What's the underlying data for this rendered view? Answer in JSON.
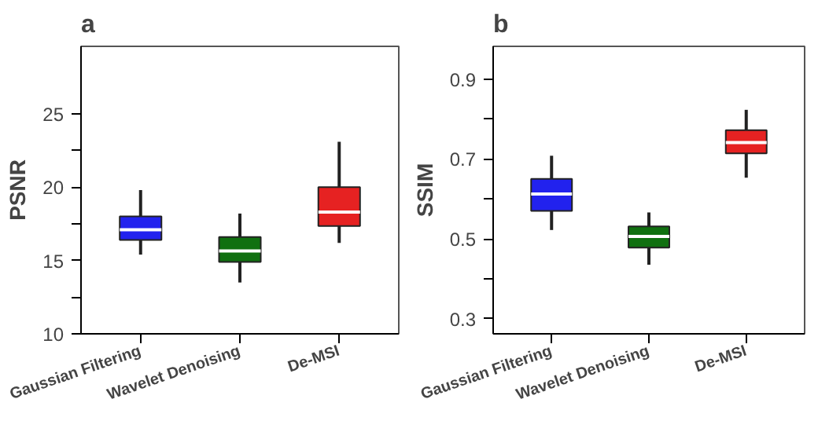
{
  "chart_data": [
    {
      "type": "box",
      "title": "a",
      "ylabel": "PSNR",
      "categories": [
        "Gaussian Filtering",
        "Wavelet Denoising",
        "De-MSI"
      ],
      "colors": [
        "#2222ee",
        "#107010",
        "#e62222"
      ],
      "ylim": [
        10,
        29.6
      ],
      "yticks": [
        10,
        {
          "value": 12.5,
          "label": null
        },
        15,
        {
          "value": 17.5,
          "label": null
        },
        20,
        {
          "value": 22.5,
          "label": null
        },
        25
      ],
      "grid": false,
      "boxes": [
        {
          "low": 15.4,
          "q1": 16.4,
          "median": 17.1,
          "q3": 18.0,
          "high": 19.8
        },
        {
          "low": 13.5,
          "q1": 14.9,
          "median": 15.65,
          "q3": 16.6,
          "high": 18.2
        },
        {
          "low": 16.2,
          "q1": 17.35,
          "median": 18.3,
          "q3": 20.0,
          "high": 23.1
        }
      ]
    },
    {
      "type": "box",
      "title": "b",
      "ylabel": "SSIM",
      "categories": [
        "Gaussian Filtering",
        "Wavelet Denoising",
        "De-MSI"
      ],
      "colors": [
        "#2222ee",
        "#107010",
        "#e62222"
      ],
      "ylim": [
        0.262,
        0.982
      ],
      "yticks": [
        0.3,
        {
          "value": 0.4,
          "label": null
        },
        0.5,
        {
          "value": 0.6,
          "label": null
        },
        0.7,
        {
          "value": 0.8,
          "label": null
        },
        0.9
      ],
      "grid": false,
      "boxes": [
        {
          "low": 0.522,
          "q1": 0.57,
          "median": 0.612,
          "q3": 0.65,
          "high": 0.708
        },
        {
          "low": 0.435,
          "q1": 0.478,
          "median": 0.506,
          "q3": 0.531,
          "high": 0.566
        },
        {
          "low": 0.653,
          "q1": 0.714,
          "median": 0.741,
          "q3": 0.772,
          "high": 0.823
        }
      ]
    }
  ]
}
